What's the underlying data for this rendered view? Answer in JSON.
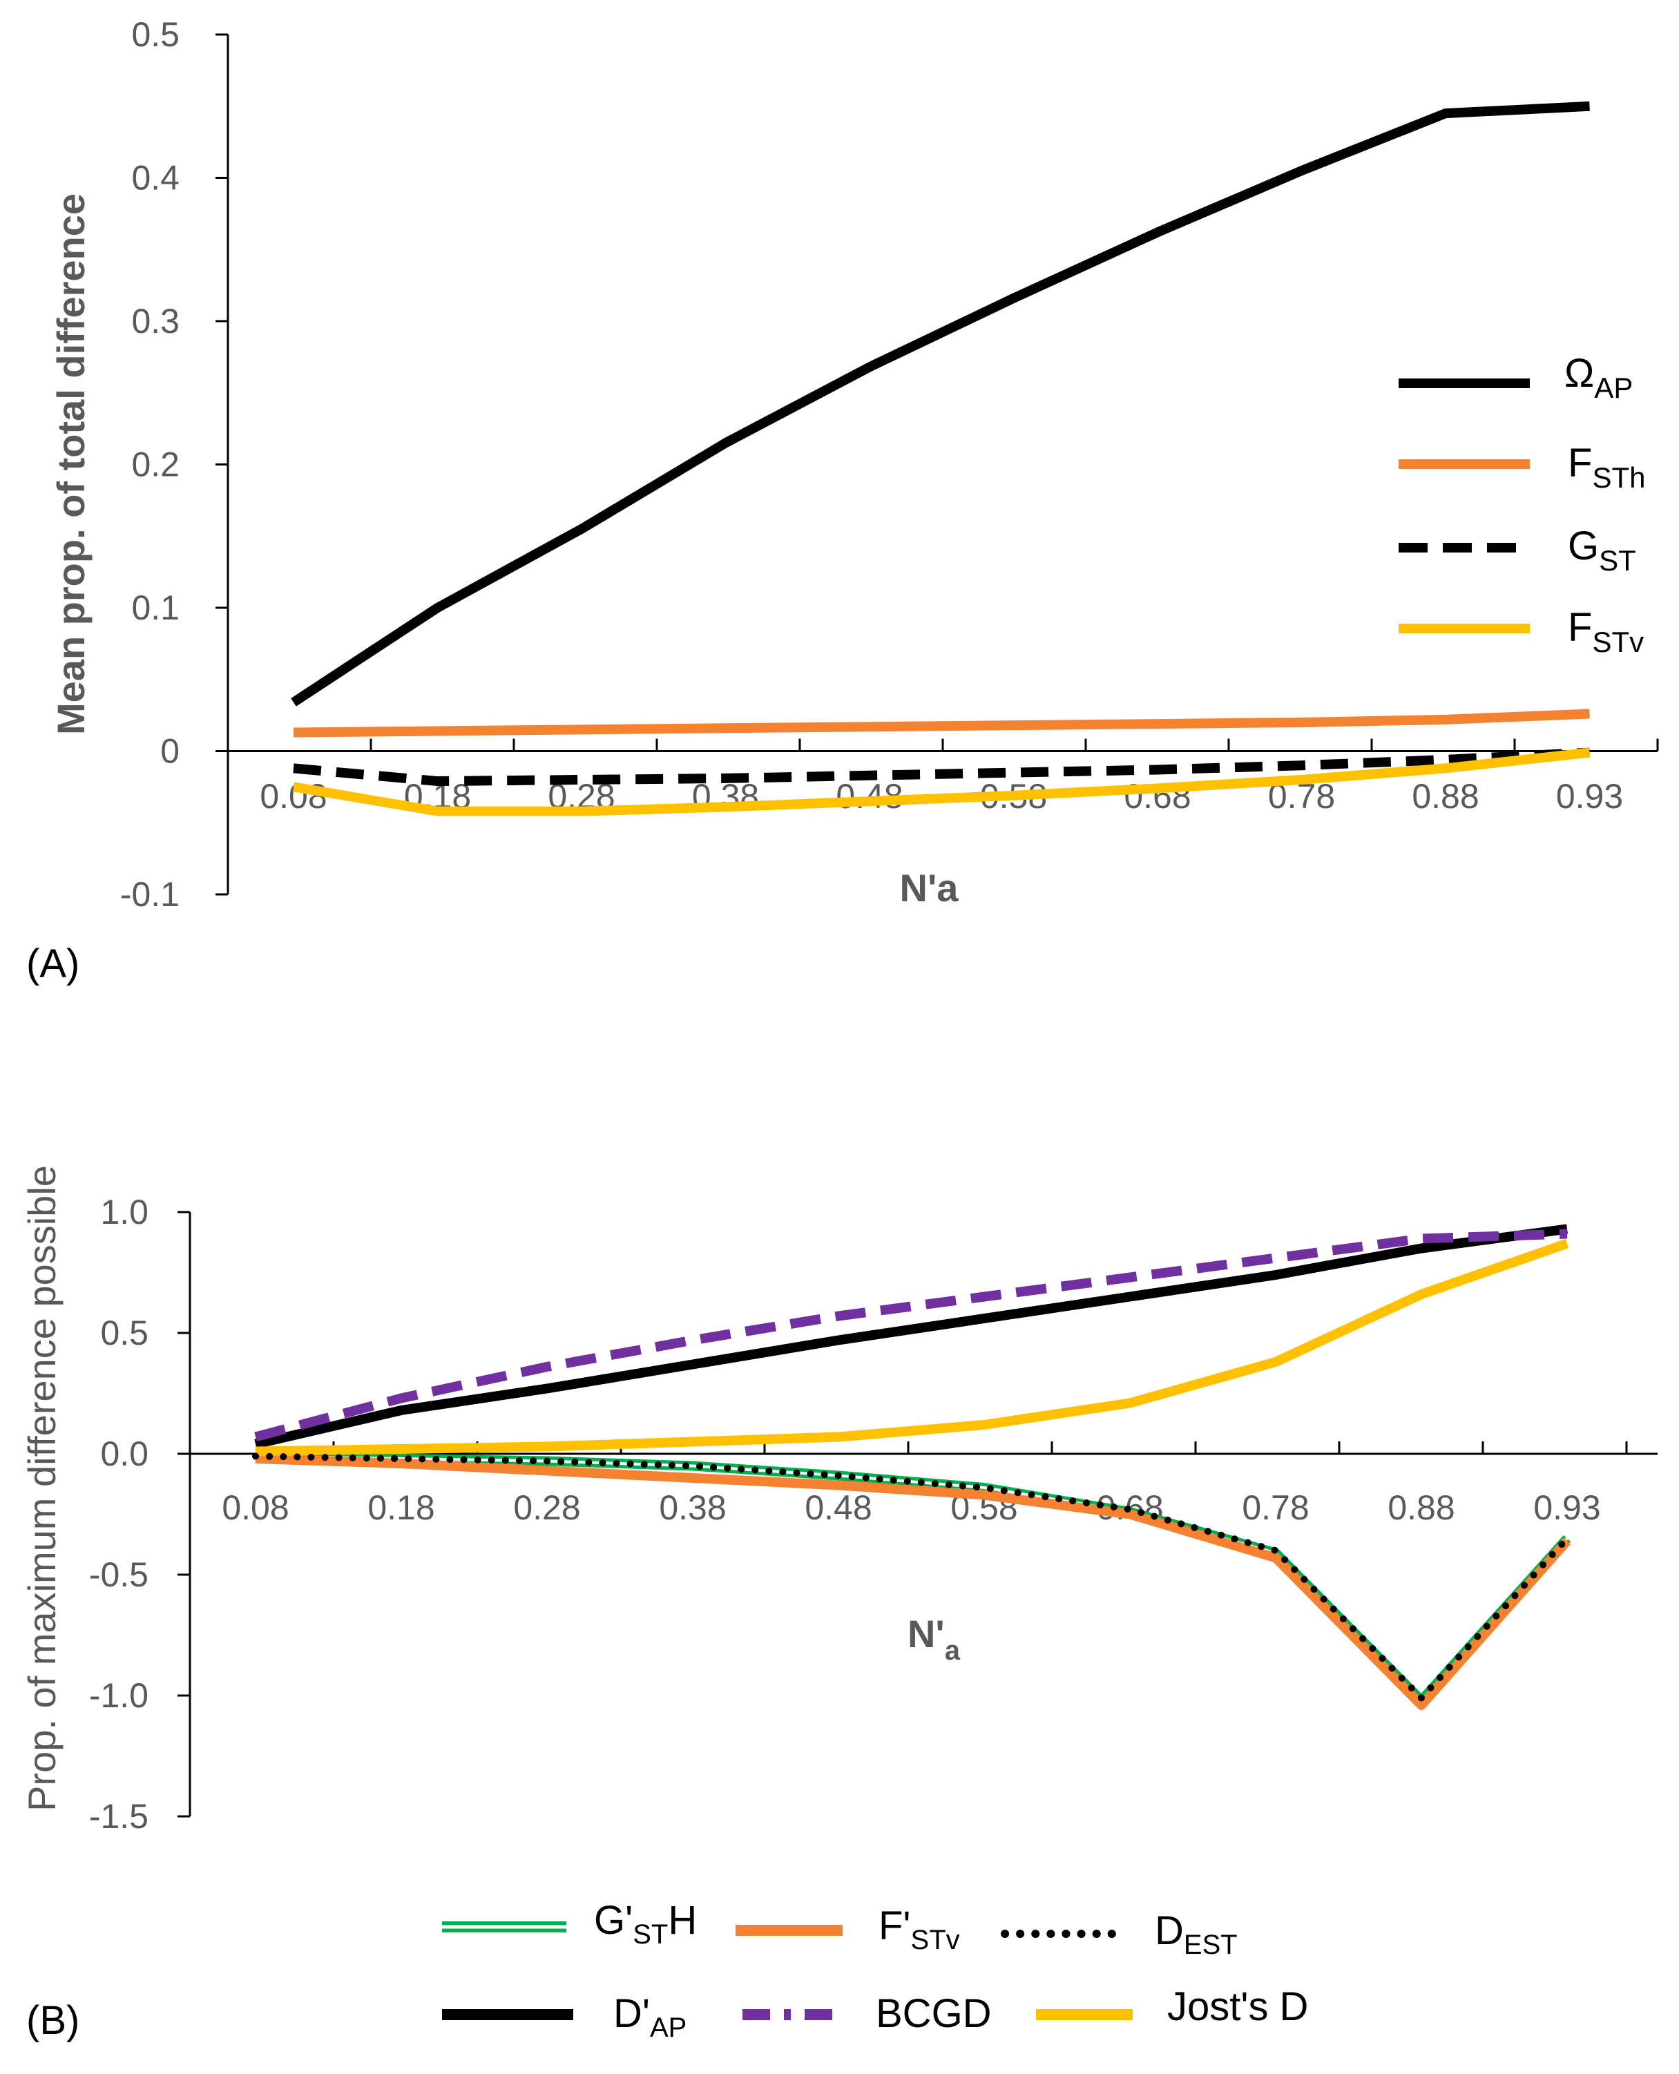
{
  "chart_data": [
    {
      "panel_label": "(A)",
      "type": "line",
      "xlabel": "N'a",
      "ylabel": "Mean prop. of total difference",
      "categories": [
        "0.08",
        "0.18",
        "0.28",
        "0.38",
        "0.48",
        "0.58",
        "0.68",
        "0.78",
        "0.88",
        "0.93"
      ],
      "ylim": [
        -0.1,
        0.5
      ],
      "yticks": [
        "-0.1",
        "0",
        "0.1",
        "0.2",
        "0.3",
        "0.4",
        "0.5"
      ],
      "ytick_values": [
        -0.1,
        0,
        0.1,
        0.2,
        0.3,
        0.4,
        0.5
      ],
      "legend_position": "right",
      "series": [
        {
          "name": "Ω",
          "sub": "AP",
          "color": "#000000",
          "style": "solid",
          "values": [
            0.034,
            0.1,
            0.155,
            0.215,
            0.268,
            0.316,
            0.362,
            0.405,
            0.445,
            0.45
          ]
        },
        {
          "name": "F",
          "sub": "STh",
          "color": "#F58231",
          "style": "solid",
          "values": [
            0.013,
            0.014,
            0.015,
            0.016,
            0.017,
            0.018,
            0.019,
            0.02,
            0.022,
            0.026
          ]
        },
        {
          "name": "G",
          "sub": "ST",
          "color": "#000000",
          "style": "dashed",
          "values": [
            -0.012,
            -0.021,
            -0.02,
            -0.019,
            -0.017,
            -0.015,
            -0.013,
            -0.01,
            -0.006,
            -0.001
          ]
        },
        {
          "name": "F",
          "sub": "STv",
          "color": "#FFC000",
          "style": "solid",
          "values": [
            -0.025,
            -0.042,
            -0.042,
            -0.039,
            -0.035,
            -0.031,
            -0.026,
            -0.02,
            -0.012,
            -0.001
          ]
        }
      ]
    },
    {
      "panel_label": "(B)",
      "type": "line",
      "xlabel": "N'",
      "xlabel_sub": "a",
      "ylabel": "Prop. of maximum difference possible",
      "categories": [
        "0.08",
        "0.18",
        "0.28",
        "0.38",
        "0.48",
        "0.58",
        "0.68",
        "0.78",
        "0.88",
        "0.93"
      ],
      "ylim": [
        -1.5,
        1.0
      ],
      "yticks": [
        "-1.5",
        "-1.0",
        "-0.5",
        "0.0",
        "0.5",
        "1.0"
      ],
      "ytick_values": [
        -1.5,
        -1.0,
        -0.5,
        0.0,
        0.5,
        1.0
      ],
      "legend_position": "bottom",
      "series": [
        {
          "name": "G'",
          "sub": "ST",
          "suffix": "H",
          "color": "#00B050",
          "style": "double",
          "values": [
            -0.01,
            -0.02,
            -0.03,
            -0.05,
            -0.09,
            -0.14,
            -0.24,
            -0.41,
            -1.02,
            -0.35
          ]
        },
        {
          "name": "F'",
          "sub": "STv",
          "suffix": "",
          "color": "#F58231",
          "style": "solid",
          "values": [
            -0.02,
            -0.04,
            -0.07,
            -0.1,
            -0.13,
            -0.17,
            -0.25,
            -0.43,
            -1.04,
            -0.36
          ]
        },
        {
          "name": "D",
          "sub": "EST",
          "suffix": "",
          "color": "#000000",
          "style": "dotted",
          "values": [
            -0.01,
            -0.02,
            -0.03,
            -0.05,
            -0.09,
            -0.14,
            -0.23,
            -0.4,
            -1.01,
            -0.35
          ]
        },
        {
          "name": "D'",
          "sub": "AP",
          "suffix": "",
          "color": "#000000",
          "style": "solid",
          "values": [
            0.04,
            0.18,
            0.27,
            0.37,
            0.47,
            0.56,
            0.65,
            0.74,
            0.85,
            0.93
          ]
        },
        {
          "name": "BCGD",
          "sub": "",
          "suffix": "",
          "color": "#7030A0",
          "style": "dashed",
          "values": [
            0.07,
            0.23,
            0.36,
            0.47,
            0.57,
            0.65,
            0.73,
            0.81,
            0.89,
            0.91
          ]
        },
        {
          "name": "Jost's D",
          "sub": "",
          "suffix": "",
          "color": "#FFC000",
          "style": "solid",
          "values": [
            0.01,
            0.02,
            0.03,
            0.05,
            0.07,
            0.12,
            0.21,
            0.38,
            0.66,
            0.87
          ]
        }
      ]
    }
  ]
}
